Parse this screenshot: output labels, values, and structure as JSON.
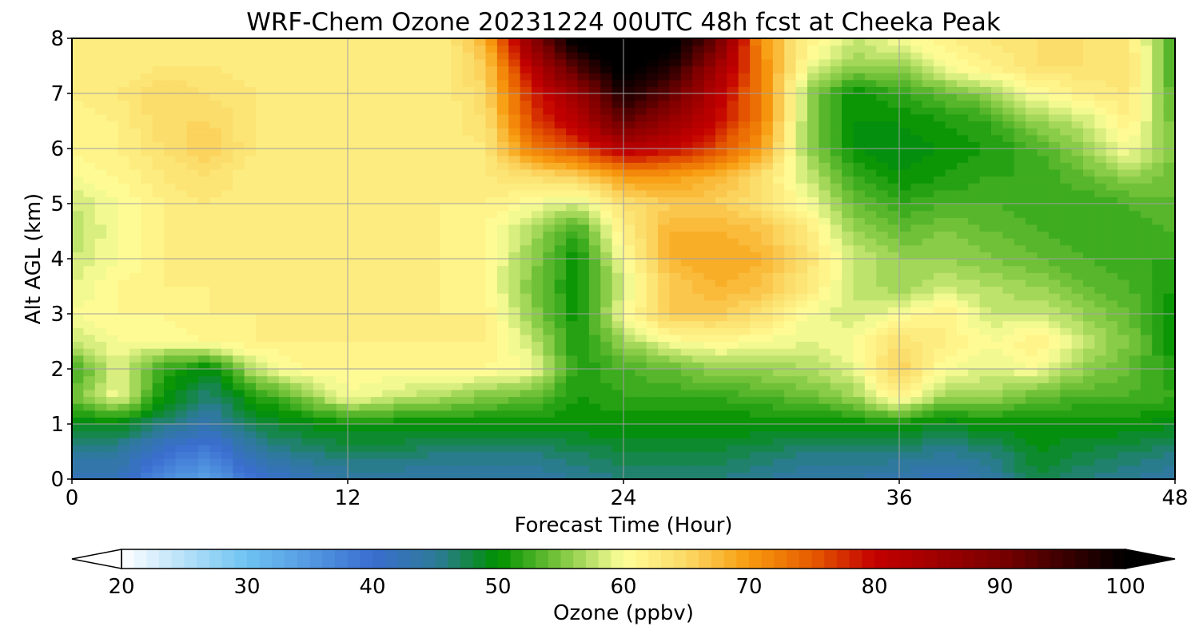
{
  "chart_data": {
    "type": "heatmap",
    "title": "WRF-Chem Ozone  20231224 00UTC 48h fcst at Cheeka Peak",
    "xlabel": "Forecast Time (Hour)",
    "ylabel": "Alt AGL (km)",
    "xlim": [
      0,
      48
    ],
    "ylim": [
      0,
      8
    ],
    "x_ticks": [
      0,
      12,
      24,
      36,
      48
    ],
    "y_ticks": [
      0,
      1,
      2,
      3,
      4,
      5,
      6,
      7,
      8
    ],
    "grid": true,
    "x": [
      0,
      2,
      4,
      6,
      8,
      10,
      12,
      14,
      16,
      18,
      20,
      22,
      24,
      26,
      28,
      30,
      32,
      34,
      36,
      38,
      40,
      42,
      44,
      46,
      48
    ],
    "y": [
      0,
      0.5,
      1,
      1.5,
      2,
      2.5,
      3,
      3.5,
      4,
      4.5,
      5,
      5.5,
      6,
      6.5,
      7,
      7.5,
      8
    ],
    "z": [
      [
        42,
        42,
        36,
        34,
        40,
        42,
        44,
        44,
        44,
        44,
        44,
        45,
        46,
        46,
        46,
        45,
        44,
        44,
        43,
        42,
        44,
        48,
        46,
        45,
        44
      ],
      [
        45,
        45,
        40,
        38,
        44,
        46,
        47,
        47,
        46,
        46,
        46,
        47,
        48,
        48,
        48,
        47,
        46,
        46,
        46,
        45,
        46,
        49,
        48,
        47,
        46
      ],
      [
        49,
        49,
        46,
        43,
        48,
        49,
        50,
        50,
        50,
        50,
        50,
        50,
        50,
        50,
        50,
        50,
        50,
        50,
        50,
        49,
        50,
        50,
        50,
        50,
        49
      ],
      [
        54,
        60,
        50,
        46,
        51,
        55,
        60,
        58,
        57,
        55,
        54,
        51,
        52,
        52,
        52,
        53,
        54,
        56,
        62,
        56,
        56,
        54,
        53,
        53,
        52
      ],
      [
        52,
        59,
        52,
        49,
        58,
        61,
        61,
        61,
        61,
        61,
        60,
        51,
        53,
        54,
        56,
        56,
        57,
        59,
        66,
        60,
        59,
        60,
        56,
        54,
        51
      ],
      [
        58,
        60,
        60,
        61,
        62,
        62,
        62,
        62,
        62,
        62,
        58,
        51,
        56,
        60,
        61,
        60,
        59,
        60,
        64,
        62,
        60,
        62,
        58,
        55,
        50
      ],
      [
        60,
        61,
        61,
        62,
        62,
        62,
        62,
        62,
        62,
        62,
        56,
        50,
        60,
        66,
        66,
        64,
        60,
        58,
        60,
        62,
        58,
        58,
        56,
        54,
        50
      ],
      [
        59,
        61,
        62,
        62,
        62,
        62,
        62,
        62,
        62,
        61,
        55,
        50,
        58,
        66,
        68,
        67,
        63,
        58,
        56,
        58,
        57,
        56,
        54,
        53,
        51
      ],
      [
        58,
        60,
        62,
        63,
        62,
        62,
        62,
        63,
        62,
        61,
        56,
        50,
        60,
        68,
        69,
        68,
        64,
        58,
        56,
        56,
        55,
        54,
        53,
        52,
        52
      ],
      [
        57,
        60,
        62,
        63,
        62,
        62,
        62,
        63,
        62,
        61,
        57,
        52,
        62,
        68,
        68,
        67,
        63,
        56,
        54,
        55,
        54,
        53,
        52,
        52,
        53
      ],
      [
        58,
        60,
        62,
        63,
        62,
        62,
        62,
        63,
        62,
        62,
        60,
        58,
        64,
        66,
        66,
        64,
        60,
        54,
        52,
        53,
        53,
        52,
        52,
        53,
        54
      ],
      [
        60,
        61,
        63,
        64,
        62,
        62,
        62,
        63,
        62,
        63,
        64,
        66,
        70,
        70,
        68,
        64,
        58,
        52,
        50,
        51,
        52,
        52,
        54,
        56,
        54
      ],
      [
        61,
        62,
        64,
        66,
        63,
        62,
        62,
        63,
        62,
        63,
        72,
        76,
        82,
        80,
        76,
        70,
        56,
        50,
        49,
        50,
        51,
        53,
        56,
        60,
        55
      ],
      [
        61,
        62,
        65,
        65,
        63,
        62,
        62,
        62,
        62,
        64,
        76,
        82,
        92,
        86,
        80,
        72,
        56,
        50,
        50,
        51,
        52,
        56,
        58,
        62,
        54
      ],
      [
        62,
        63,
        65,
        64,
        63,
        62,
        62,
        62,
        62,
        65,
        78,
        86,
        98,
        92,
        82,
        72,
        56,
        50,
        52,
        54,
        56,
        60,
        62,
        63,
        53
      ],
      [
        62,
        62,
        63,
        63,
        62,
        62,
        62,
        62,
        62,
        66,
        82,
        94,
        102,
        98,
        86,
        72,
        60,
        56,
        56,
        60,
        62,
        64,
        64,
        64,
        52
      ],
      [
        62,
        62,
        62,
        62,
        62,
        62,
        62,
        62,
        62,
        68,
        88,
        102,
        104,
        102,
        92,
        70,
        62,
        58,
        60,
        62,
        63,
        64,
        64,
        63,
        52
      ]
    ],
    "colorbar": {
      "label": "Ozone  (ppbv)",
      "min": 20,
      "max": 100,
      "ticks": [
        20,
        30,
        40,
        50,
        60,
        70,
        80,
        90,
        100
      ],
      "extend": "both",
      "stops": [
        {
          "v": 20,
          "c": "#ffffff"
        },
        {
          "v": 30,
          "c": "#6ec3f2"
        },
        {
          "v": 40,
          "c": "#3a6ed0"
        },
        {
          "v": 45,
          "c": "#2e7a9a"
        },
        {
          "v": 50,
          "c": "#009100"
        },
        {
          "v": 55,
          "c": "#7cc63e"
        },
        {
          "v": 60,
          "c": "#ffff99"
        },
        {
          "v": 65,
          "c": "#fbd966"
        },
        {
          "v": 70,
          "c": "#f89b0e"
        },
        {
          "v": 75,
          "c": "#e65c00"
        },
        {
          "v": 80,
          "c": "#c40000"
        },
        {
          "v": 90,
          "c": "#7a0000"
        },
        {
          "v": 100,
          "c": "#000000"
        }
      ]
    }
  }
}
